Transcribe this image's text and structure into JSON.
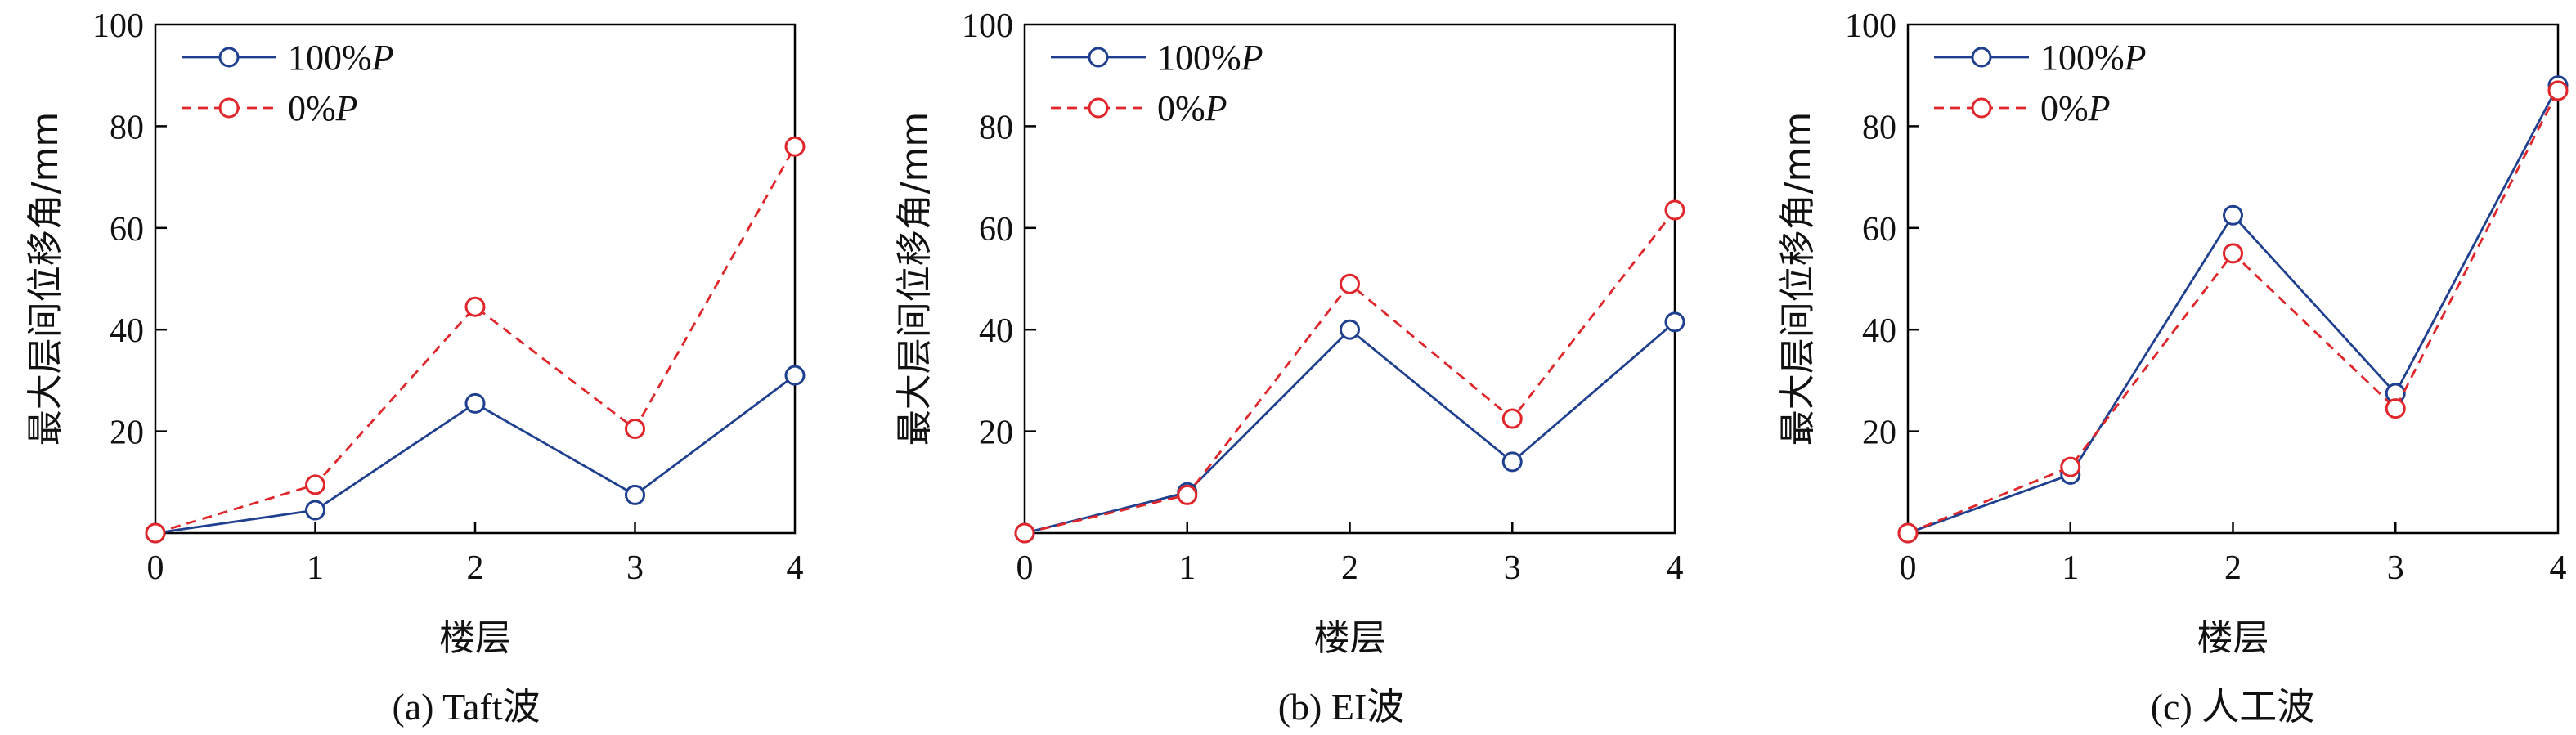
{
  "colors": {
    "series_1": "#1f3f8f",
    "series_2": "#e0262b",
    "axis": "#000000"
  },
  "chart_data": [
    {
      "type": "line",
      "caption": "(a) Taft波",
      "xlabel": "楼层",
      "ylabel": "最大层间位移角/mm",
      "xlim": [
        0,
        4
      ],
      "ylim": [
        0,
        100
      ],
      "x_ticks": [
        "0",
        "1",
        "2",
        "3",
        "4"
      ],
      "y_ticks": [
        "20",
        "40",
        "60",
        "80",
        "100"
      ],
      "legend_position": "top-left",
      "grid": false,
      "series": [
        {
          "name": "100%P",
          "style": "solid",
          "marker": "circle-open",
          "x": [
            0,
            1,
            2,
            3,
            4
          ],
          "values": [
            0,
            4.5,
            25.5,
            7.5,
            31
          ]
        },
        {
          "name": "0%P",
          "style": "dashed",
          "marker": "circle-open",
          "x": [
            0,
            1,
            2,
            3,
            4
          ],
          "values": [
            0,
            9.5,
            44.5,
            20.5,
            76
          ]
        }
      ]
    },
    {
      "type": "line",
      "caption": "(b) EI波",
      "xlabel": "楼层",
      "ylabel": "最大层间位移角/mm",
      "xlim": [
        0,
        4
      ],
      "ylim": [
        0,
        100
      ],
      "x_ticks": [
        "0",
        "1",
        "2",
        "3",
        "4"
      ],
      "y_ticks": [
        "20",
        "40",
        "60",
        "80",
        "100"
      ],
      "legend_position": "top-left",
      "grid": false,
      "series": [
        {
          "name": "100%P",
          "style": "solid",
          "marker": "circle-open",
          "x": [
            0,
            1,
            2,
            3,
            4
          ],
          "values": [
            0,
            8,
            40,
            14,
            41.5
          ]
        },
        {
          "name": "0%P",
          "style": "dashed",
          "marker": "circle-open",
          "x": [
            0,
            1,
            2,
            3,
            4
          ],
          "values": [
            0,
            7.5,
            49,
            22.5,
            63.5
          ]
        }
      ]
    },
    {
      "type": "line",
      "caption": "(c) 人工波",
      "xlabel": "楼层",
      "ylabel": "最大层间位移角/mm",
      "xlim": [
        0,
        4
      ],
      "ylim": [
        0,
        100
      ],
      "x_ticks": [
        "0",
        "1",
        "2",
        "3",
        "4"
      ],
      "y_ticks": [
        "20",
        "40",
        "60",
        "80",
        "100"
      ],
      "legend_position": "top-left",
      "grid": false,
      "series": [
        {
          "name": "100%P",
          "style": "solid",
          "marker": "circle-open",
          "x": [
            0,
            1,
            2,
            3,
            4
          ],
          "values": [
            0,
            11.5,
            62.5,
            27.5,
            88
          ]
        },
        {
          "name": "0%P",
          "style": "dashed",
          "marker": "circle-open",
          "x": [
            0,
            1,
            2,
            3,
            4
          ],
          "values": [
            0,
            13,
            55,
            24.5,
            87
          ]
        }
      ]
    }
  ]
}
